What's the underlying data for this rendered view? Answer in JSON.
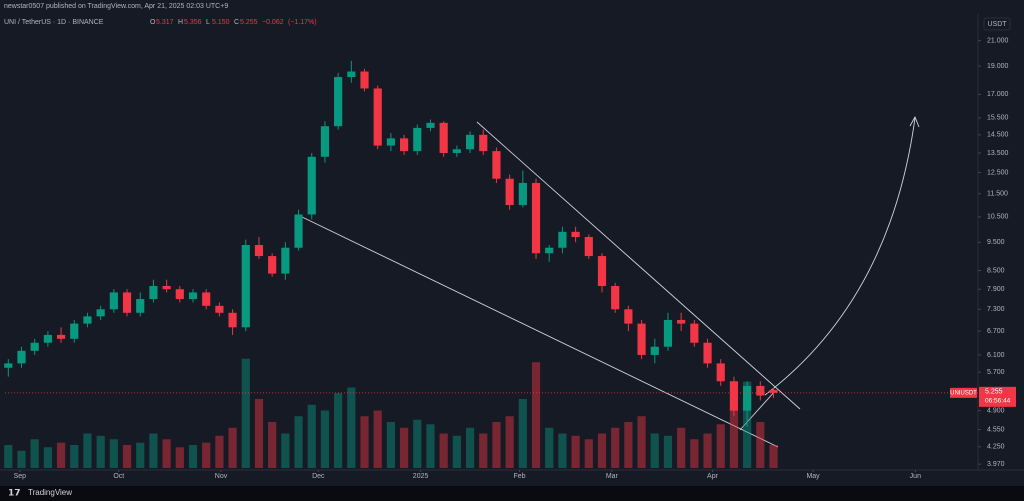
{
  "header": {
    "author": "newstar0507 published on TradingView.com, Apr 21, 2025 02:03 UTC+9",
    "symbol": "UNI / TetherUS · 1D · BINANCE",
    "ohlc": [
      {
        "key": "O",
        "value": 5.317
      },
      {
        "key": "H",
        "value": 5.356
      },
      {
        "key": "L",
        "value": 5.15,
        "label": "5.150"
      },
      {
        "key": "C",
        "value": 5.255
      }
    ],
    "change": {
      "value": -0.062,
      "label": "−0.062"
    },
    "change_pct": {
      "value": -1.17,
      "label": "(−1.17%)"
    },
    "currency": "USDT",
    "footer": "TradingView"
  },
  "chart_data": {
    "type": "candlestick",
    "log_scale": true,
    "up_color": "#089981",
    "down_color": "#f23645",
    "xlim": [
      0,
      295
    ],
    "ylim": [
      3.91,
      21.9
    ],
    "volume_lim": [
      0,
      100
    ],
    "xticks": [
      {
        "value": 4.5,
        "label": "Sep"
      },
      {
        "value": 34.5,
        "label": "Oct"
      },
      {
        "value": 65.5,
        "label": "Nov"
      },
      {
        "value": 95,
        "label": "Dec"
      },
      {
        "value": 126,
        "label": "2025"
      },
      {
        "value": 156,
        "label": "Feb"
      },
      {
        "value": 184,
        "label": "Mar"
      },
      {
        "value": 214.5,
        "label": "Apr"
      },
      {
        "value": 245,
        "label": "May"
      },
      {
        "value": 276,
        "label": "Jun"
      }
    ],
    "yticks": [
      {
        "value": 21,
        "label": "21.000"
      },
      {
        "value": 19,
        "label": "19.000"
      },
      {
        "value": 17,
        "label": "17.000"
      },
      {
        "value": 15.5,
        "label": "15.500"
      },
      {
        "value": 14.5,
        "label": "14.500"
      },
      {
        "value": 13.5,
        "label": "13.500"
      },
      {
        "value": 12.5,
        "label": "12.500"
      },
      {
        "value": 11.5,
        "label": "11.500"
      },
      {
        "value": 10.5,
        "label": "10.500"
      },
      {
        "value": 9.5,
        "label": "9.500"
      },
      {
        "value": 8.5,
        "label": "8.500"
      },
      {
        "value": 7.9,
        "label": "7.900"
      },
      {
        "value": 7.3,
        "label": "7.300"
      },
      {
        "value": 6.7,
        "label": "6.700"
      },
      {
        "value": 6.1,
        "label": "6.100"
      },
      {
        "value": 5.7,
        "label": "5.700"
      },
      {
        "value": 4.9,
        "label": "4.900"
      },
      {
        "value": 4.55,
        "label": "4.550"
      },
      {
        "value": 4.25,
        "label": "4.250"
      },
      {
        "value": 3.97,
        "label": "3.970"
      }
    ],
    "x": [
      1,
      5,
      9,
      13,
      17,
      21,
      25,
      29,
      33,
      37,
      41,
      45,
      49,
      53,
      57,
      61,
      65,
      69,
      73,
      77,
      81,
      85,
      89,
      93,
      97,
      101,
      105,
      109,
      113,
      117,
      121,
      125,
      129,
      133,
      137,
      141,
      145,
      149,
      153,
      157,
      161,
      165,
      169,
      173,
      177,
      181,
      185,
      189,
      193,
      197,
      201,
      205,
      209,
      213,
      217,
      221,
      225,
      229,
      233
    ],
    "open": [
      5.8,
      5.9,
      6.2,
      6.4,
      6.6,
      6.5,
      6.9,
      7.1,
      7.3,
      7.8,
      7.2,
      7.6,
      8.0,
      7.9,
      7.6,
      7.8,
      7.4,
      7.2,
      6.8,
      9.4,
      9.0,
      8.4,
      9.3,
      10.6,
      13.3,
      15.0,
      18.2,
      18.6,
      17.4,
      13.9,
      14.3,
      13.6,
      14.9,
      15.2,
      13.5,
      13.7,
      14.5,
      13.6,
      12.2,
      11.0,
      12.0,
      9.1,
      9.3,
      9.9,
      9.7,
      9.0,
      8.0,
      7.3,
      6.9,
      6.1,
      6.3,
      7.0,
      6.9,
      6.4,
      5.9,
      5.5,
      4.9,
      5.4,
      5.317
    ],
    "high": [
      6.0,
      6.3,
      6.5,
      6.7,
      6.8,
      7.0,
      7.2,
      7.4,
      7.9,
      7.9,
      7.8,
      8.2,
      8.2,
      8.0,
      7.9,
      7.9,
      7.5,
      7.3,
      9.6,
      9.7,
      9.1,
      9.5,
      10.8,
      13.5,
      15.3,
      18.5,
      19.4,
      18.8,
      17.6,
      14.6,
      14.5,
      15.1,
      15.4,
      15.3,
      13.9,
      14.7,
      14.8,
      13.8,
      12.4,
      12.6,
      12.2,
      9.4,
      10.1,
      10.1,
      9.8,
      9.1,
      8.1,
      7.4,
      7.0,
      6.5,
      7.2,
      7.2,
      7.0,
      6.5,
      6.0,
      5.6,
      5.5,
      5.5,
      5.356
    ],
    "low": [
      5.6,
      5.8,
      6.1,
      6.3,
      6.4,
      6.4,
      6.8,
      7.0,
      7.2,
      7.1,
      7.1,
      7.5,
      7.8,
      7.5,
      7.5,
      7.3,
      7.1,
      6.6,
      6.7,
      8.9,
      8.3,
      8.2,
      9.2,
      10.4,
      13.0,
      14.8,
      17.8,
      17.2,
      13.7,
      13.6,
      13.4,
      13.4,
      14.7,
      13.3,
      13.3,
      13.5,
      13.4,
      12.0,
      10.8,
      10.9,
      8.9,
      8.8,
      9.1,
      9.5,
      8.9,
      7.8,
      7.2,
      6.7,
      6.0,
      5.9,
      6.2,
      6.7,
      6.3,
      5.8,
      5.4,
      4.8,
      4.6,
      5.1,
      5.15
    ],
    "close": [
      5.9,
      6.2,
      6.4,
      6.6,
      6.5,
      6.9,
      7.1,
      7.3,
      7.8,
      7.2,
      7.6,
      8.0,
      7.9,
      7.6,
      7.8,
      7.4,
      7.2,
      6.8,
      9.4,
      9.0,
      8.4,
      9.3,
      10.6,
      13.3,
      15.0,
      18.2,
      18.6,
      17.4,
      13.9,
      14.3,
      13.6,
      14.9,
      15.2,
      13.5,
      13.7,
      14.5,
      13.6,
      12.2,
      11.0,
      12.0,
      9.1,
      9.3,
      9.9,
      9.7,
      9.0,
      8.0,
      7.3,
      6.9,
      6.1,
      6.3,
      7.0,
      6.9,
      6.4,
      5.9,
      5.5,
      4.9,
      5.4,
      5.2,
      5.255
    ],
    "volume": [
      20,
      15,
      25,
      18,
      22,
      20,
      30,
      28,
      25,
      20,
      22,
      30,
      25,
      18,
      20,
      22,
      28,
      35,
      95,
      60,
      40,
      30,
      45,
      55,
      50,
      65,
      70,
      45,
      50,
      40,
      35,
      42,
      38,
      30,
      28,
      35,
      30,
      40,
      45,
      60,
      92,
      35,
      30,
      28,
      25,
      30,
      35,
      40,
      45,
      30,
      28,
      35,
      25,
      30,
      38,
      55,
      75,
      40,
      20
    ],
    "last_price": {
      "value": 5.255,
      "symbol": "UNIUSDT",
      "countdown": "06:56:44"
    }
  }
}
